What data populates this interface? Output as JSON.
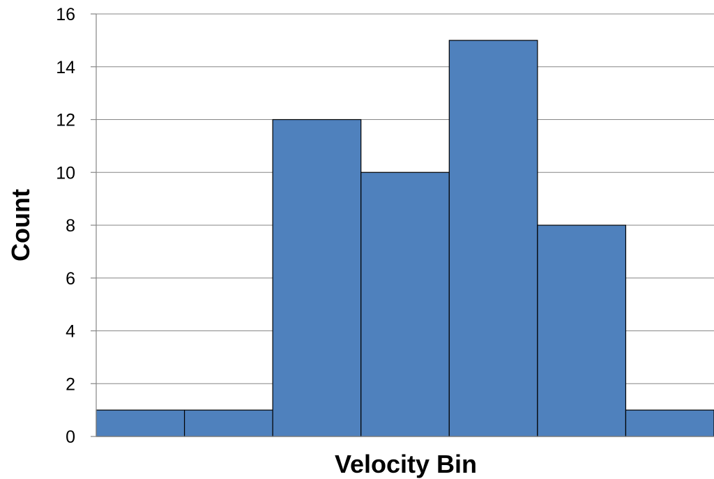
{
  "chart_data": {
    "type": "bar",
    "categories": [
      "",
      "",
      "",
      "",
      "",
      "",
      ""
    ],
    "values": [
      1,
      1,
      12,
      10,
      15,
      8,
      1
    ],
    "title": "",
    "xlabel": "Velocity Bin",
    "ylabel": "Count",
    "ylim": [
      0,
      16
    ],
    "yticks": [
      "0",
      "2",
      "4",
      "6",
      "8",
      "10",
      "12",
      "14",
      "16"
    ],
    "grid": true,
    "legend": "none",
    "bar_color": "#4f81bd",
    "bar_edge_color": "#000000",
    "gap_width": 0
  }
}
